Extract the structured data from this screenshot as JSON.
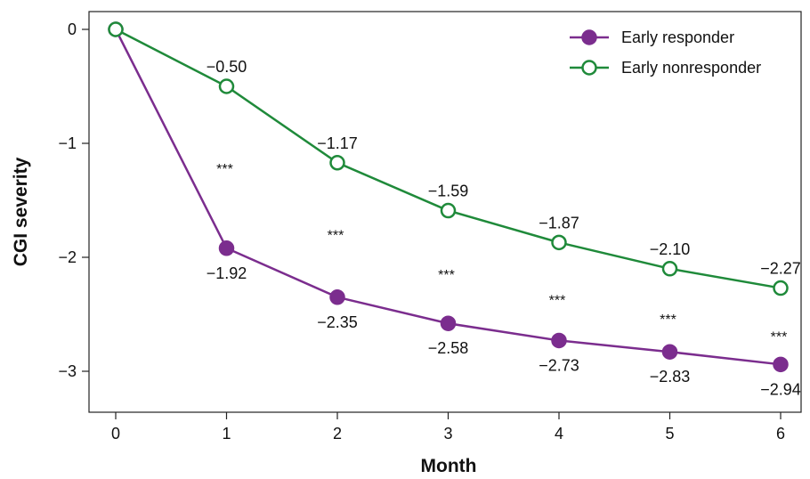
{
  "chart_data": {
    "type": "line",
    "xlabel": "Month",
    "ylabel": "CGI severity",
    "x": [
      0,
      1,
      2,
      3,
      4,
      5,
      6
    ],
    "xticks": [
      "0",
      "1",
      "2",
      "3",
      "4",
      "5",
      "6"
    ],
    "yticks": [
      0,
      -1,
      -2,
      -3
    ],
    "ytick_labels": [
      "0",
      "−1",
      "−2",
      "−3"
    ],
    "xlim": [
      -0.2,
      6.2
    ],
    "ylim": [
      -3.35,
      0.15
    ],
    "grid": false,
    "legend_position": "top-right",
    "series": [
      {
        "name": "Early responder",
        "color": "#7b2d8e",
        "marker": "filled-circle",
        "values": [
          0,
          -1.92,
          -2.35,
          -2.58,
          -2.73,
          -2.83,
          -2.94
        ],
        "labels": [
          "",
          "−1.92",
          "−2.35",
          "−2.58",
          "−2.73",
          "−2.83",
          "−2.94"
        ],
        "label_position": "below"
      },
      {
        "name": "Early nonresponder",
        "color": "#1f8a3a",
        "marker": "open-circle",
        "values": [
          0,
          -0.5,
          -1.17,
          -1.59,
          -1.87,
          -2.1,
          -2.27
        ],
        "labels": [
          "",
          "−0.50",
          "−1.17",
          "−1.59",
          "−1.87",
          "−2.10",
          "−2.27"
        ],
        "label_position": "above"
      }
    ],
    "significance": {
      "x": [
        1,
        2,
        3,
        4,
        5,
        6
      ],
      "y": [
        -1.22,
        -1.8,
        -2.15,
        -2.37,
        -2.54,
        -2.69
      ],
      "text": "***"
    }
  }
}
